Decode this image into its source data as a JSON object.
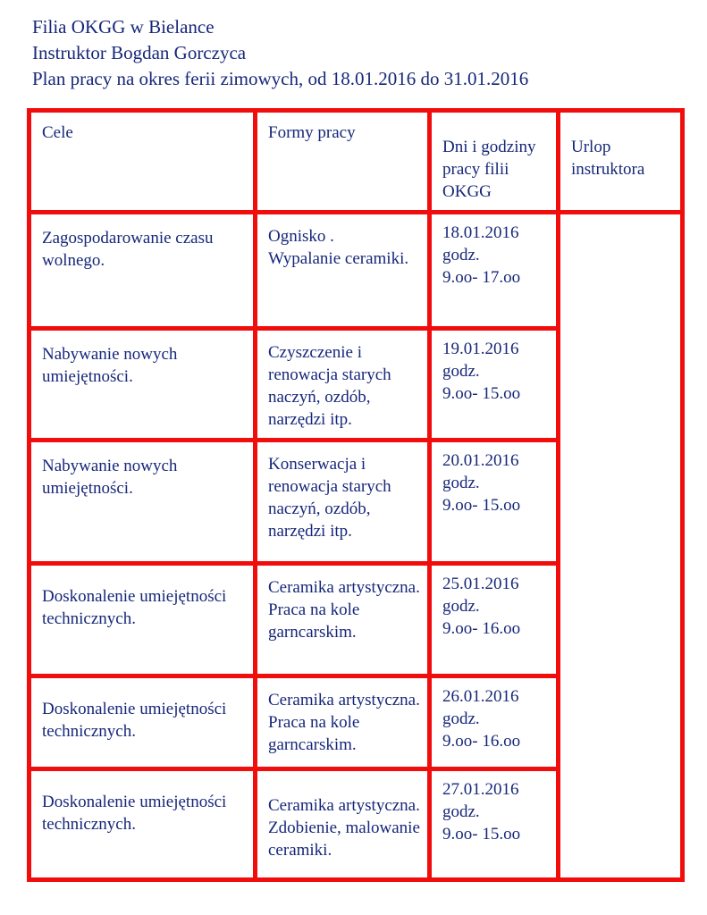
{
  "colors": {
    "table_border": "#f20d0d",
    "text_color": "#16277a",
    "page_bg": "#ffffff"
  },
  "header": {
    "lines": [
      "Filia OKGG w Bielance",
      "Instruktor Bogdan Gorczyca",
      "Plan pracy na okres ferii zimowych, od 18.01.2016 do 31.01.2016"
    ]
  },
  "table": {
    "headers": [
      "Cele",
      "Formy pracy",
      "Dni i godziny\npracy filii\nOKGG",
      "Urlop\ninstruktora"
    ],
    "rows": [
      {
        "cele": "Zagospodarowanie czasu\nwolnego.",
        "formy": "Ognisko .\nWypalanie ceramiki.",
        "dni": "18.01.2016\ngodz.\n9.oo- 17.oo",
        "urlop": ""
      },
      {
        "cele": "Nabywanie nowych\numiejętności.",
        "formy": "Czyszczenie i\nrenowacja starych\nnaczyń, ozdób,\nnarzędzi itp.",
        "dni": "19.01.2016\ngodz.\n9.oo- 15.oo",
        "urlop": ""
      },
      {
        "cele": "Nabywanie nowych\numiejętności.",
        "formy": "Konserwacja i\nrenowacja starych\nnaczyń, ozdób,\nnarzędzi itp.",
        "dni": "20.01.2016\ngodz.\n9.oo- 15.oo",
        "urlop": ""
      },
      {
        "cele": "Doskonalenie umiejętności\ntechnicznych.",
        "formy": "Ceramika artystyczna.\nPraca na kole\ngarncarskim.",
        "dni": "25.01.2016\ngodz.\n9.oo- 16.oo",
        "urlop": ""
      },
      {
        "cele": "Doskonalenie umiejętności\ntechnicznych.",
        "formy": "Ceramika artystyczna.\nPraca na kole\ngarncarskim.",
        "dni": "26.01.2016\ngodz.\n9.oo- 16.oo",
        "urlop": ""
      },
      {
        "cele": "Doskonalenie umiejętności\ntechnicznych.",
        "formy": "Ceramika artystyczna.\nZdobienie, malowanie\nceramiki.",
        "dni": "27.01.2016\ngodz.\n9.oo- 15.oo",
        "urlop": ""
      }
    ]
  }
}
